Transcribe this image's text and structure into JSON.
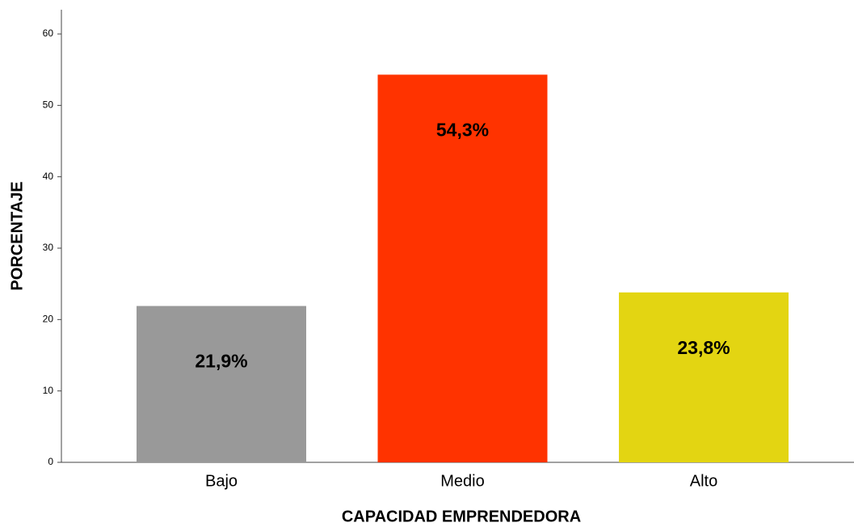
{
  "chart_data": {
    "type": "bar",
    "x_label": "CAPACIDAD EMPRENDEDORA",
    "y_label": "PORCENTAJE",
    "categories": [
      "Bajo",
      "Medio",
      "Alto"
    ],
    "values": [
      21.9,
      54.3,
      23.8
    ],
    "value_labels": [
      "21,9%",
      "54,3%",
      "23,8%"
    ],
    "colors": [
      "#999999",
      "#ff3300",
      "#e3d512"
    ],
    "ylim": [
      0,
      63.4
    ],
    "yticks": [
      0,
      10,
      20,
      30,
      40,
      50,
      60
    ],
    "grid": false
  }
}
